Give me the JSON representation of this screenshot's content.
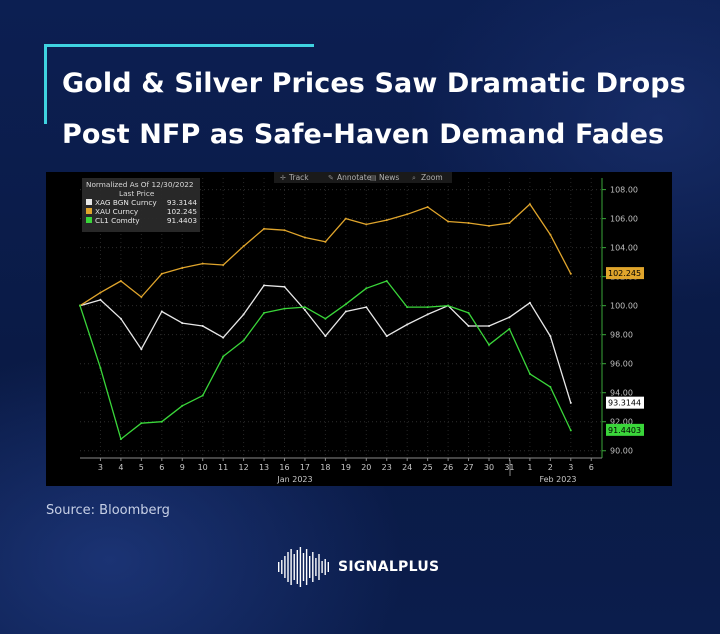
{
  "title": {
    "line1": "Gold & Silver Prices Saw Dramatic Drops",
    "line2": "Post NFP as Safe-Haven Demand Fades"
  },
  "source": "Source: Bloomberg",
  "brand": {
    "name": "SIGNALPLUS"
  },
  "toolbar": [
    {
      "icon": "crosshair-icon",
      "label": "Track"
    },
    {
      "icon": "pencil-icon",
      "label": "Annotate"
    },
    {
      "icon": "news-icon",
      "label": "News"
    },
    {
      "icon": "zoom-icon",
      "label": "Zoom"
    }
  ],
  "legend": {
    "header1": "Normalized As Of 12/30/2022",
    "header2": "Last Price",
    "rows": [
      {
        "name": "XAG BGN Curncy",
        "value": "93.3144",
        "color": "#e8e8e8"
      },
      {
        "name": "XAU Curncy",
        "value": "102.245",
        "color": "#e0a52c"
      },
      {
        "name": "CL1 Comdty",
        "value": "91.4403",
        "color": "#3ad63a"
      }
    ]
  },
  "chart_data": {
    "type": "line",
    "x": [
      "12-30",
      "1-3",
      "1-4",
      "1-5",
      "1-6",
      "1-9",
      "1-10",
      "1-11",
      "1-12",
      "1-13",
      "1-16",
      "1-17",
      "1-18",
      "1-19",
      "1-20",
      "1-23",
      "1-24",
      "1-25",
      "1-26",
      "1-27",
      "1-30",
      "1-31",
      "2-1",
      "2-2",
      "2-3"
    ],
    "xtick_labels": [
      "3",
      "4",
      "5",
      "6",
      "9",
      "10",
      "11",
      "12",
      "13",
      "16",
      "17",
      "18",
      "19",
      "20",
      "23",
      "24",
      "25",
      "26",
      "27",
      "30",
      "31",
      "1",
      "2",
      "3",
      "6"
    ],
    "month_labels": [
      "Jan 2023",
      "Feb 2023"
    ],
    "ylim": [
      89.5,
      108.8
    ],
    "yticks": [
      "90.00",
      "92.00",
      "94.00",
      "96.00",
      "98.00",
      "100.00",
      "102.00",
      "104.00",
      "106.00",
      "108.00"
    ],
    "series": [
      {
        "name": "XAG BGN Curncy",
        "color": "#e8e8e8",
        "last": "93.3144",
        "values": [
          100.0,
          100.4,
          99.1,
          97.0,
          99.6,
          98.8,
          98.6,
          97.8,
          99.4,
          101.4,
          101.3,
          99.7,
          97.9,
          99.6,
          99.9,
          97.9,
          98.7,
          99.4,
          100.0,
          98.6,
          98.6,
          99.2,
          100.2,
          97.9,
          93.3
        ]
      },
      {
        "name": "XAU Curncy",
        "color": "#e0a52c",
        "last": "102.245",
        "values": [
          100.0,
          100.9,
          101.7,
          100.6,
          102.2,
          102.6,
          102.9,
          102.8,
          104.1,
          105.3,
          105.2,
          104.7,
          104.4,
          106.0,
          105.6,
          105.9,
          106.3,
          106.8,
          105.8,
          105.7,
          105.5,
          105.7,
          107.0,
          104.9,
          102.2
        ]
      },
      {
        "name": "CL1 Comdty",
        "color": "#3ad63a",
        "last": "91.4403",
        "values": [
          100.0,
          95.7,
          90.8,
          91.9,
          92.0,
          93.1,
          93.8,
          96.5,
          97.6,
          99.5,
          99.8,
          99.9,
          99.1,
          100.1,
          101.2,
          101.7,
          99.9,
          99.9,
          100.0,
          99.5,
          97.3,
          98.4,
          95.3,
          94.4,
          91.4
        ]
      }
    ]
  }
}
